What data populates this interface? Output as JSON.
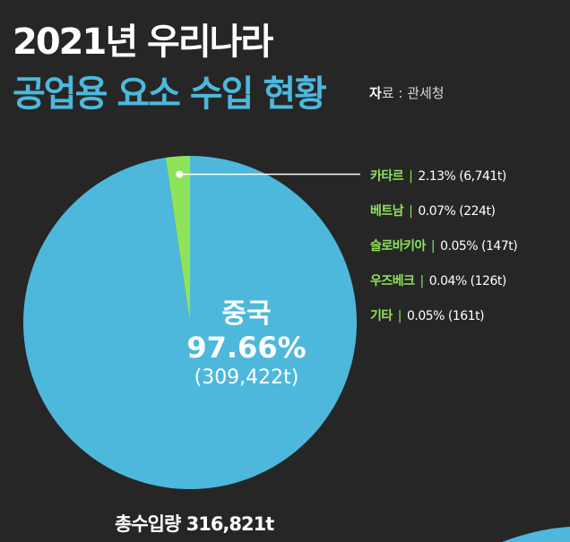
{
  "header": {
    "title_line1": "2021년 우리나라",
    "title_line2": "공업용 요소 수입 현황",
    "source_key": "자",
    "source_rest": "료 : 관세청"
  },
  "colors": {
    "background": "#262626",
    "title_accent": "#4db8dc",
    "china_slice": "#4db8dc",
    "others_slice": "#8fe35a",
    "leader_line": "#ffffff"
  },
  "chart_data": {
    "type": "pie",
    "title": "공업용 요소 수입 현황",
    "unit": "t",
    "total_label": "총수입량 316,821t",
    "total": 316821,
    "slices": [
      {
        "label": "중국",
        "percent": 97.66,
        "value": 309422,
        "pct_text": "97.66%",
        "value_text": "(309,422t)"
      },
      {
        "label": "카타르",
        "percent": 2.13,
        "value": 6741,
        "text": "2.13% (6,741t)"
      },
      {
        "label": "베트남",
        "percent": 0.07,
        "value": 224,
        "text": "0.07% (224t)"
      },
      {
        "label": "슬로바키아",
        "percent": 0.05,
        "value": 147,
        "text": "0.05% (147t)"
      },
      {
        "label": "우즈베크",
        "percent": 0.04,
        "value": 126,
        "text": "0.04% (126t)"
      },
      {
        "label": "기타",
        "percent": 0.05,
        "value": 161,
        "text": "0.05% (161t)"
      }
    ]
  }
}
